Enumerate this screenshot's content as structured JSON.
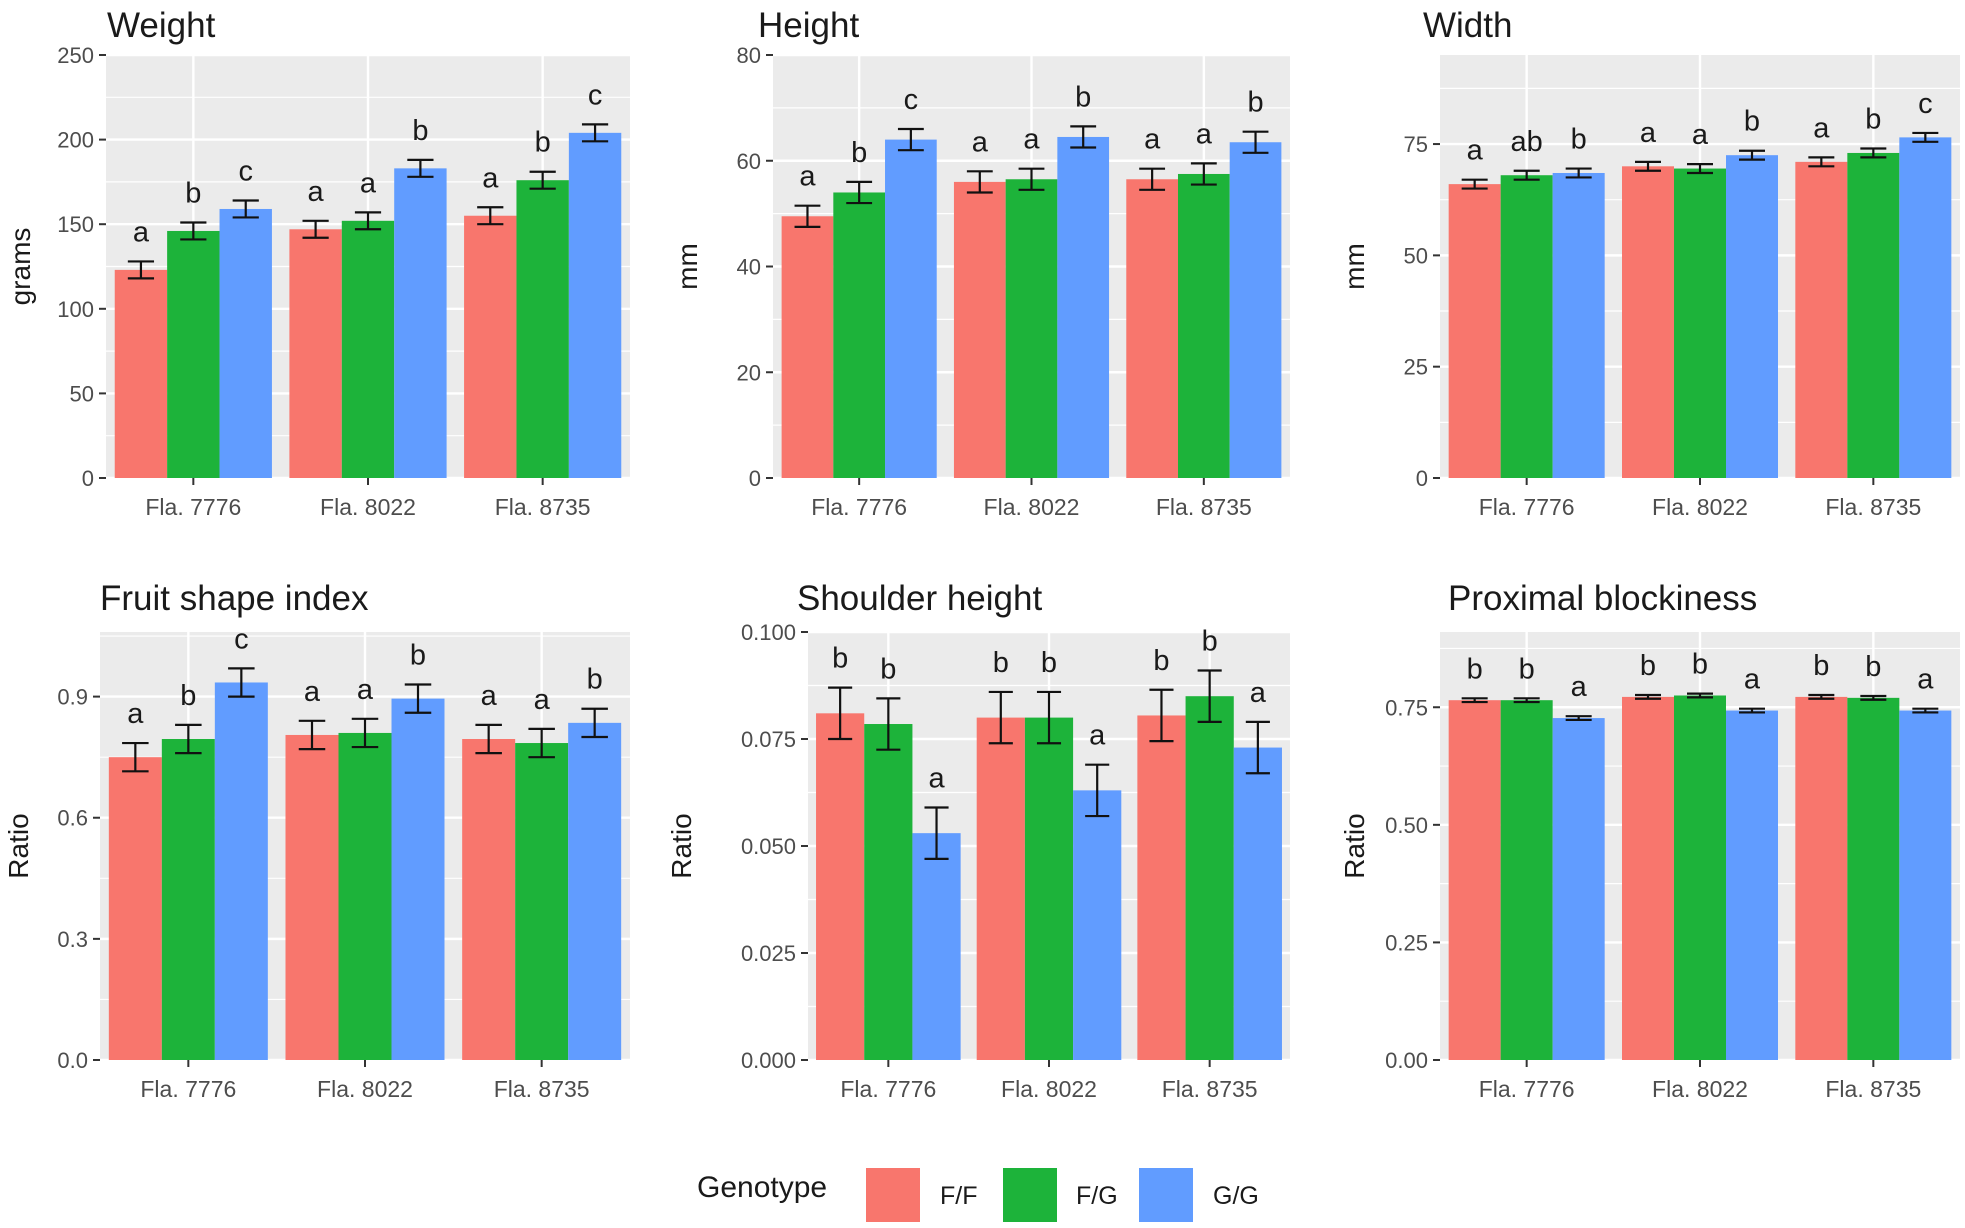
{
  "legend": {
    "title": "Genotype",
    "entries": [
      {
        "label": "F/F",
        "color": "#F8766D"
      },
      {
        "label": "F/G",
        "color": "#1DB33A"
      },
      {
        "label": "G/G",
        "color": "#619CFF"
      }
    ]
  },
  "chart_data": [
    {
      "type": "bar",
      "title": "Weight",
      "xlabel": "",
      "ylabel": "grams",
      "ylim": [
        0,
        250
      ],
      "yticks": [
        0,
        50,
        100,
        150,
        200,
        250
      ],
      "ytick_labels": [
        "0",
        "50",
        "100",
        "150",
        "200",
        "250"
      ],
      "categories": [
        "Fla. 7776",
        "Fla. 8022",
        "Fla. 8735"
      ],
      "series": [
        {
          "name": "F/F",
          "values": [
            123,
            147,
            155
          ],
          "errors": [
            5,
            5,
            5
          ],
          "letters": [
            "a",
            "a",
            "a"
          ]
        },
        {
          "name": "F/G",
          "values": [
            146,
            152,
            176
          ],
          "errors": [
            5,
            5,
            5
          ],
          "letters": [
            "b",
            "a",
            "b"
          ]
        },
        {
          "name": "G/G",
          "values": [
            159,
            183,
            204
          ],
          "errors": [
            5,
            5,
            5
          ],
          "letters": [
            "c",
            "b",
            "c"
          ]
        }
      ]
    },
    {
      "type": "bar",
      "title": "Height",
      "xlabel": "",
      "ylabel": "mm",
      "ylim": [
        0,
        80
      ],
      "yticks": [
        0,
        20,
        40,
        60,
        80
      ],
      "ytick_labels": [
        "0",
        "20",
        "40",
        "60",
        "80"
      ],
      "categories": [
        "Fla. 7776",
        "Fla. 8022",
        "Fla. 8735"
      ],
      "series": [
        {
          "name": "F/F",
          "values": [
            49.5,
            56,
            56.5
          ],
          "errors": [
            2,
            2,
            2
          ],
          "letters": [
            "a",
            "a",
            "a"
          ]
        },
        {
          "name": "F/G",
          "values": [
            54,
            56.5,
            57.5
          ],
          "errors": [
            2,
            2,
            2
          ],
          "letters": [
            "b",
            "a",
            "a"
          ]
        },
        {
          "name": "G/G",
          "values": [
            64,
            64.5,
            63.5
          ],
          "errors": [
            2,
            2,
            2
          ],
          "letters": [
            "c",
            "b",
            "b"
          ]
        }
      ]
    },
    {
      "type": "bar",
      "title": "Width",
      "xlabel": "",
      "ylabel": "mm",
      "ylim": [
        0,
        95
      ],
      "yticks": [
        0,
        25,
        50,
        75
      ],
      "ytick_labels": [
        "0",
        "25",
        "50",
        "75"
      ],
      "categories": [
        "Fla. 7776",
        "Fla. 8022",
        "Fla. 8735"
      ],
      "series": [
        {
          "name": "F/F",
          "values": [
            66,
            70,
            71
          ],
          "errors": [
            1,
            1,
            1
          ],
          "letters": [
            "a",
            "a",
            "a"
          ]
        },
        {
          "name": "F/G",
          "values": [
            68,
            69.5,
            73
          ],
          "errors": [
            1,
            1,
            1
          ],
          "letters": [
            "ab",
            "a",
            "b"
          ]
        },
        {
          "name": "G/G",
          "values": [
            68.5,
            72.5,
            76.5
          ],
          "errors": [
            1,
            1,
            1
          ],
          "letters": [
            "b",
            "b",
            "c"
          ]
        }
      ]
    },
    {
      "type": "bar",
      "title": "Fruit shape index",
      "xlabel": "",
      "ylabel": "Ratio",
      "ylim": [
        0,
        1.06
      ],
      "yticks": [
        0,
        0.3,
        0.6,
        0.9
      ],
      "ytick_labels": [
        "0.0",
        "0.3",
        "0.6",
        "0.9"
      ],
      "categories": [
        "Fla. 7776",
        "Fla. 8022",
        "Fla. 8735"
      ],
      "series": [
        {
          "name": "F/F",
          "values": [
            0.75,
            0.805,
            0.795
          ],
          "errors": [
            0.035,
            0.035,
            0.035
          ],
          "letters": [
            "a",
            "a",
            "a"
          ]
        },
        {
          "name": "F/G",
          "values": [
            0.795,
            0.81,
            0.785
          ],
          "errors": [
            0.035,
            0.035,
            0.035
          ],
          "letters": [
            "b",
            "a",
            "a"
          ]
        },
        {
          "name": "G/G",
          "values": [
            0.935,
            0.895,
            0.835
          ],
          "errors": [
            0.035,
            0.035,
            0.035
          ],
          "letters": [
            "c",
            "b",
            "b"
          ]
        }
      ]
    },
    {
      "type": "bar",
      "title": "Shoulder height",
      "xlabel": "",
      "ylabel": "Ratio",
      "ylim": [
        0,
        0.1
      ],
      "yticks": [
        0,
        0.025,
        0.05,
        0.075,
        0.1
      ],
      "ytick_labels": [
        "0.000",
        "0.025",
        "0.050",
        "0.075",
        "0.100"
      ],
      "categories": [
        "Fla. 7776",
        "Fla. 8022",
        "Fla. 8735"
      ],
      "series": [
        {
          "name": "F/F",
          "values": [
            0.081,
            0.08,
            0.0805
          ],
          "errors": [
            0.006,
            0.006,
            0.006
          ],
          "letters": [
            "b",
            "b",
            "b"
          ]
        },
        {
          "name": "F/G",
          "values": [
            0.0785,
            0.08,
            0.085
          ],
          "errors": [
            0.006,
            0.006,
            0.006
          ],
          "letters": [
            "b",
            "b",
            "b"
          ]
        },
        {
          "name": "G/G",
          "values": [
            0.053,
            0.063,
            0.073
          ],
          "errors": [
            0.006,
            0.006,
            0.006
          ],
          "letters": [
            "a",
            "a",
            "a"
          ]
        }
      ]
    },
    {
      "type": "bar",
      "title": "Proximal blockiness",
      "xlabel": "",
      "ylabel": "Ratio",
      "ylim": [
        0,
        0.91
      ],
      "yticks": [
        0,
        0.25,
        0.5,
        0.75
      ],
      "ytick_labels": [
        "0.00",
        "0.25",
        "0.50",
        "0.75"
      ],
      "categories": [
        "Fla. 7776",
        "Fla. 8022",
        "Fla. 8735"
      ],
      "series": [
        {
          "name": "F/F",
          "values": [
            0.765,
            0.772,
            0.772
          ],
          "errors": [
            0.004,
            0.004,
            0.004
          ],
          "letters": [
            "b",
            "b",
            "b"
          ]
        },
        {
          "name": "F/G",
          "values": [
            0.765,
            0.775,
            0.77
          ],
          "errors": [
            0.004,
            0.004,
            0.004
          ],
          "letters": [
            "b",
            "b",
            "b"
          ]
        },
        {
          "name": "G/G",
          "values": [
            0.727,
            0.743,
            0.743
          ],
          "errors": [
            0.004,
            0.004,
            0.004
          ],
          "letters": [
            "a",
            "a",
            "a"
          ]
        }
      ]
    }
  ]
}
